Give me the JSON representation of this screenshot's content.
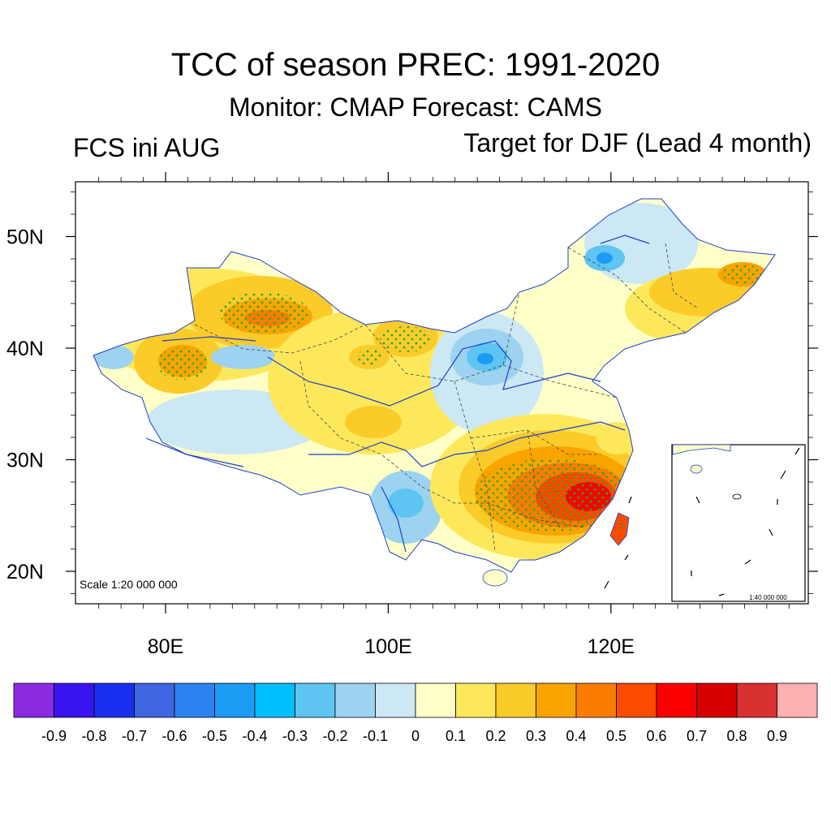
{
  "title": "TCC of season PREC: 1991-2020",
  "subtitle": "Monitor: CMAP   Forecast: CAMS",
  "left_label": "FCS ini AUG",
  "right_label": "Target for DJF (Lead 4 month)",
  "map": {
    "lon_range": [
      72,
      138
    ],
    "lat_range": [
      17,
      55
    ],
    "lat_ticks": [
      {
        "value": 20,
        "label": "20N"
      },
      {
        "value": 30,
        "label": "30N"
      },
      {
        "value": 40,
        "label": "40N"
      },
      {
        "value": 50,
        "label": "50N"
      }
    ],
    "lon_ticks": [
      {
        "value": 80,
        "label": "80E"
      },
      {
        "value": 100,
        "label": "100E"
      },
      {
        "value": 120,
        "label": "120E"
      }
    ],
    "scale_text": "Scale 1:20 000 000",
    "inset_scale_text": "1:40 000 000",
    "stipple_color": "#22aa22",
    "boundary_color": "#444444",
    "river_color": "#1f3fd0"
  },
  "colorbar": {
    "levels": [
      "-0.9",
      "-0.8",
      "-0.7",
      "-0.6",
      "-0.5",
      "-0.4",
      "-0.3",
      "-0.2",
      "-0.1",
      "0",
      "0.1",
      "0.2",
      "0.3",
      "0.4",
      "0.5",
      "0.6",
      "0.7",
      "0.8",
      "0.9"
    ],
    "colors": [
      "#8a2be2",
      "#3a14f0",
      "#1a2ff0",
      "#3f66e0",
      "#2c82f0",
      "#1c9bf5",
      "#00bfff",
      "#5ec5f2",
      "#9dd3f0",
      "#cce8f5",
      "#ffffc8",
      "#fde85c",
      "#fbcb2a",
      "#faa400",
      "#fa7d00",
      "#fa4b00",
      "#fb0000",
      "#d60000",
      "#d93030",
      "#ffb0b0"
    ]
  }
}
